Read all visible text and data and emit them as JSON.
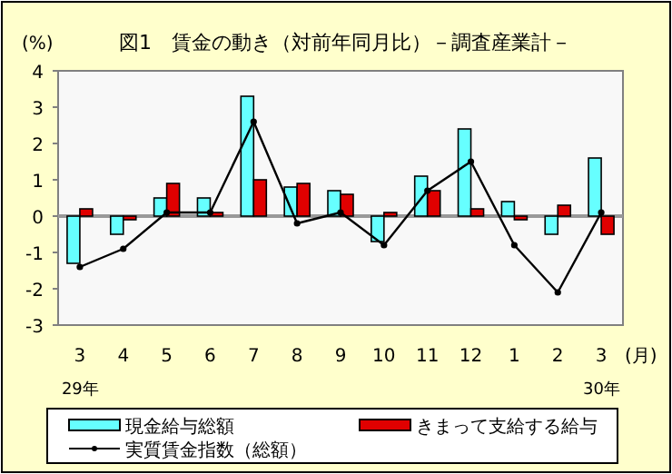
{
  "chart_data": {
    "type": "bar",
    "title": "図1　賃金の動き（対前年同月比）－調査産業計－",
    "ylabel": "(%)",
    "xlabel": "(月)",
    "categories": [
      "3",
      "4",
      "5",
      "6",
      "7",
      "8",
      "9",
      "10",
      "11",
      "12",
      "1",
      "2",
      "3"
    ],
    "series": [
      {
        "name": "現金給与総額",
        "color": "#66ffff",
        "values": [
          -1.3,
          -0.5,
          0.5,
          0.5,
          3.3,
          0.8,
          0.7,
          -0.7,
          1.1,
          2.4,
          0.4,
          -0.5,
          1.6
        ]
      },
      {
        "name": "きまって支給する給与",
        "color": "#e00000",
        "values": [
          0.2,
          -0.1,
          0.9,
          0.1,
          1.0,
          0.9,
          0.6,
          0.1,
          0.7,
          0.2,
          -0.1,
          0.3,
          -0.5
        ]
      },
      {
        "name": "実質賃金指数（総額）",
        "type": "line",
        "color": "#000000",
        "marker": "circle",
        "values": [
          -1.4,
          -0.9,
          0.1,
          0.1,
          2.6,
          -0.2,
          0.1,
          -0.8,
          0.7,
          1.5,
          -0.8,
          -2.1,
          0.1
        ]
      }
    ],
    "ylim": [
      -3,
      4
    ],
    "yticks": [
      -3,
      -2,
      -1,
      0,
      1,
      2,
      3,
      4
    ],
    "ref_lines": [
      {
        "axis": "y",
        "value": 0,
        "color": "#999999"
      }
    ],
    "annotations": [
      "29年",
      "30年"
    ],
    "grid": false,
    "legend": "bottom"
  }
}
